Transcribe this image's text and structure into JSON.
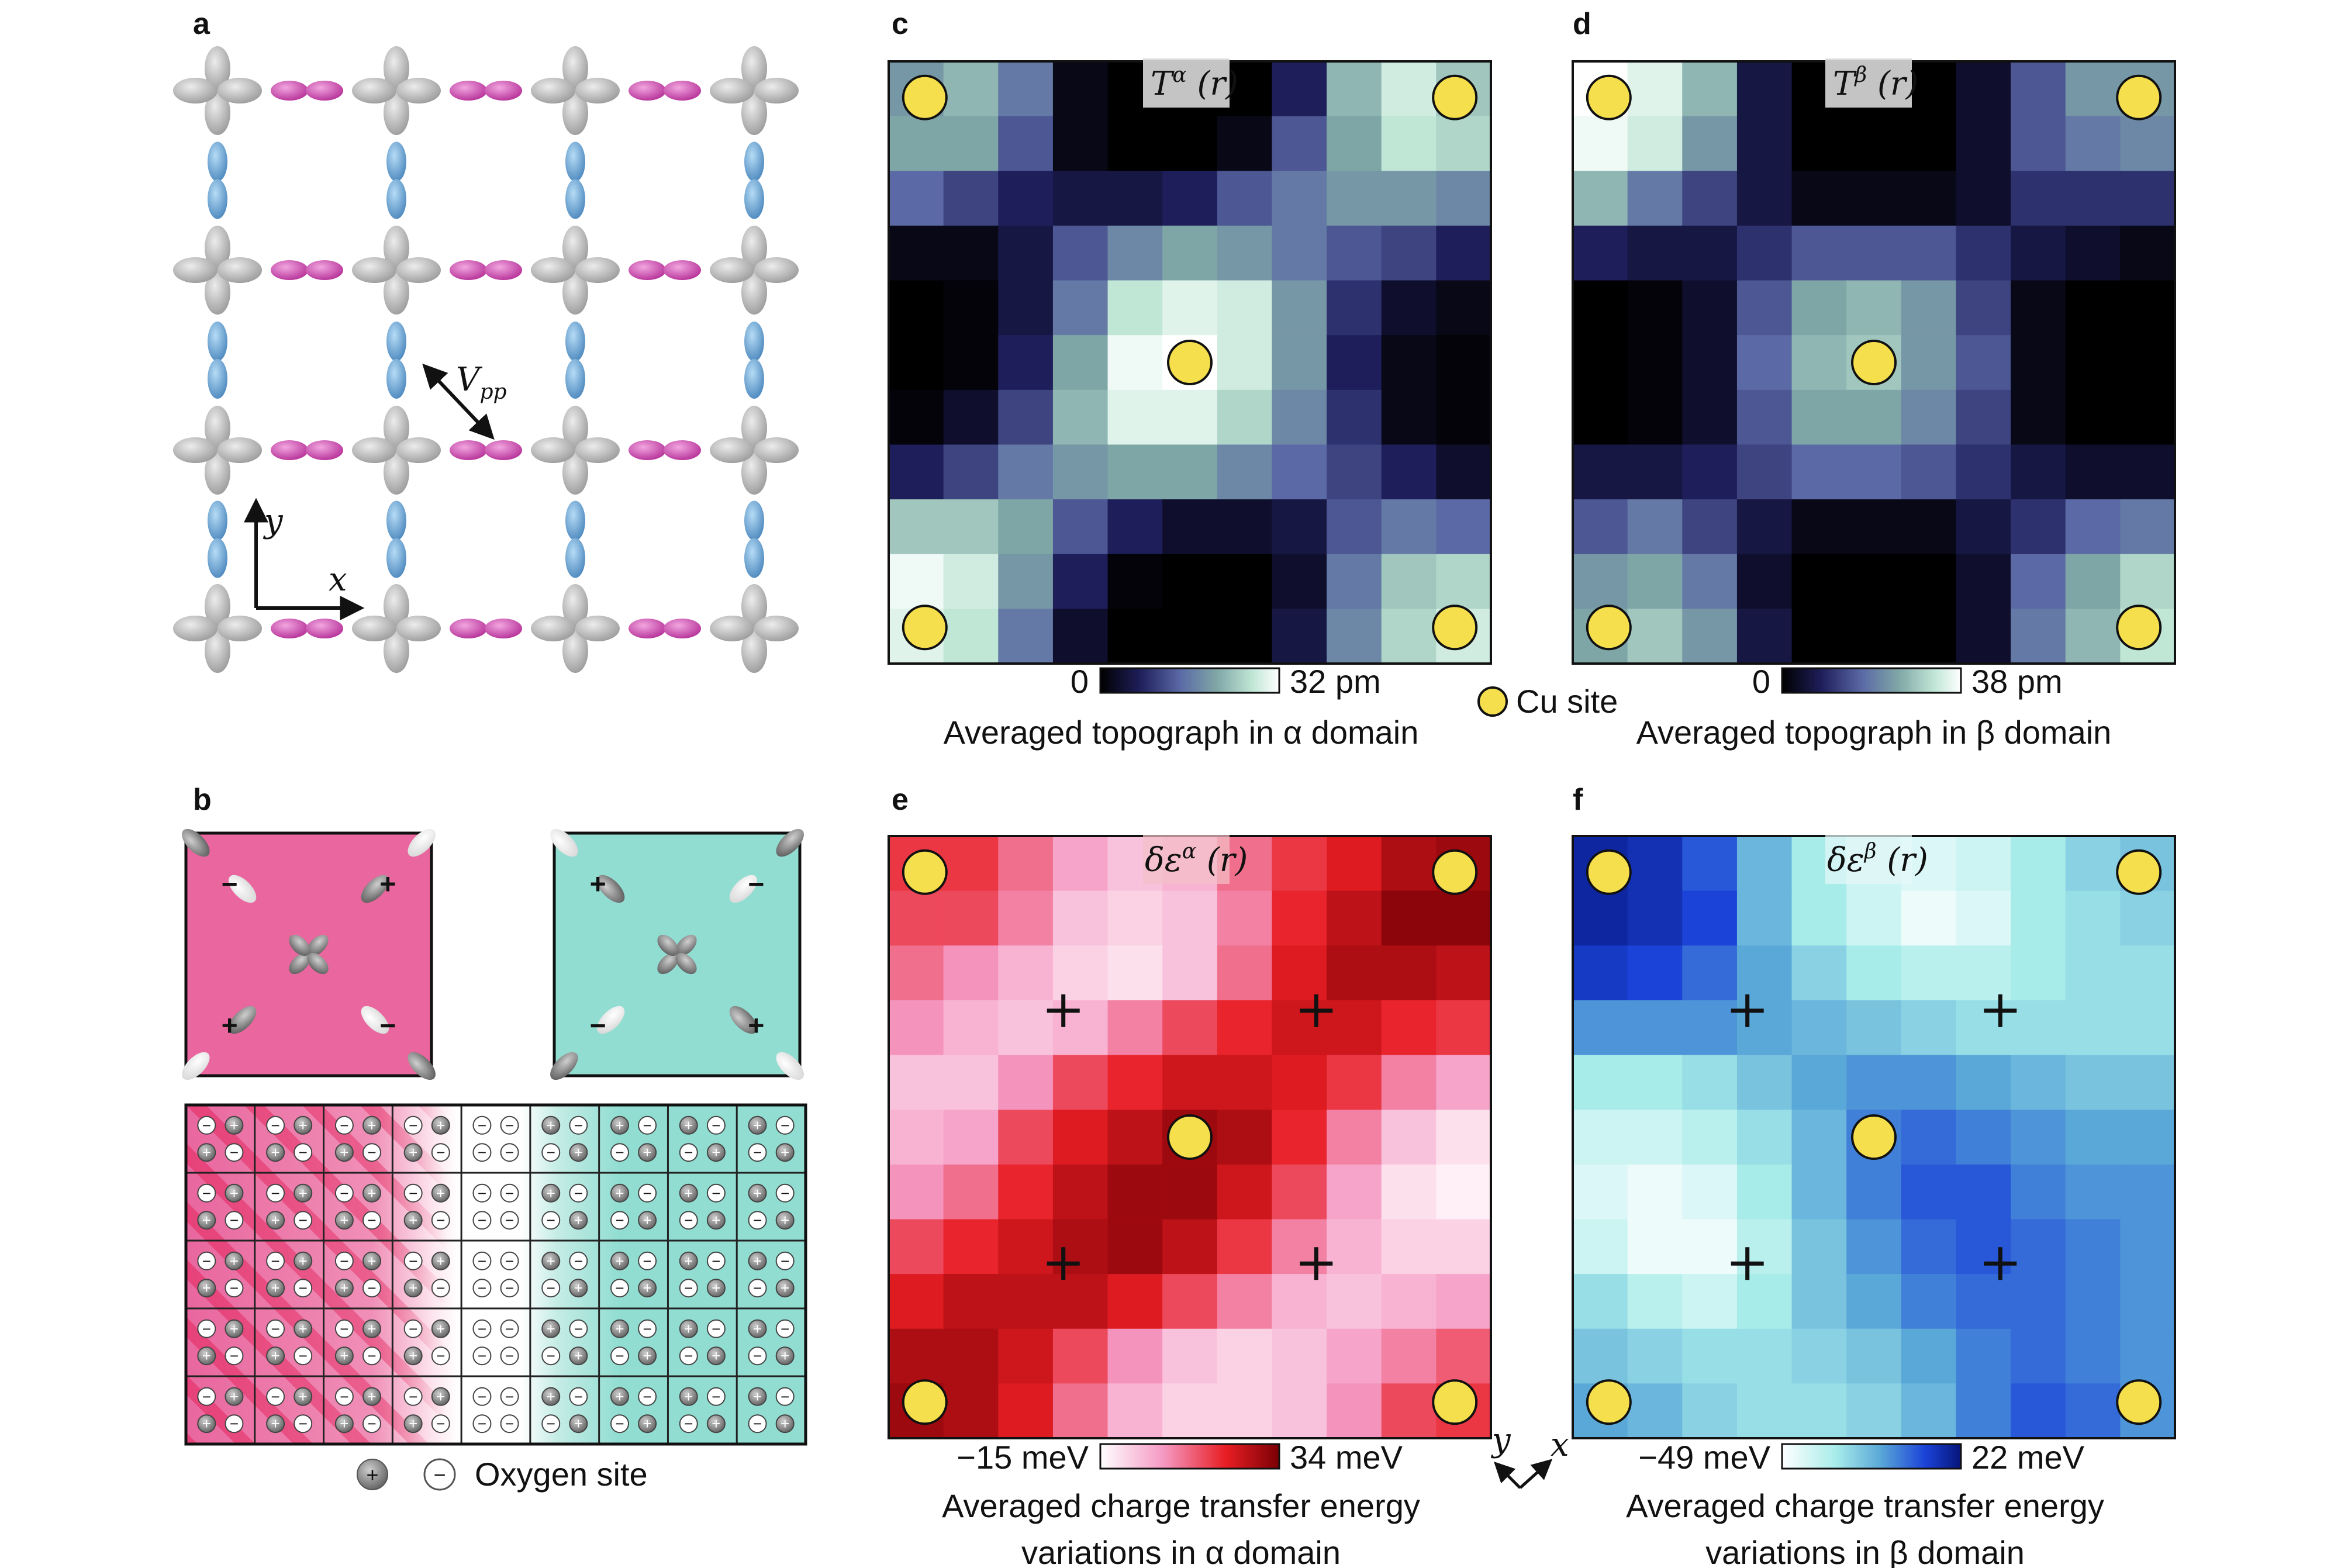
{
  "panels": {
    "a": {
      "label": "a",
      "vpp": "V",
      "vpp_sub": "pp",
      "axis_x": "x",
      "axis_y": "y"
    },
    "b": {
      "label": "b",
      "legend_text": "Oxygen site",
      "plus": "+",
      "minus": "−"
    },
    "c": {
      "label": "c",
      "title_base": "T",
      "title_sup": "α",
      "title_arg": " (r)",
      "cb_min": "0",
      "cb_max": "32 pm",
      "caption": "Averaged topograph in α domain"
    },
    "d": {
      "label": "d",
      "title_base": "T",
      "title_sup": "β",
      "title_arg": " (r)",
      "cb_min": "0",
      "cb_max": "38 pm",
      "caption": "Averaged topograph in β domain"
    },
    "e": {
      "label": "e",
      "title_base": "δε",
      "title_sup": "α",
      "title_arg": " (r)",
      "cb_min": "−15 meV",
      "cb_max": "34 meV",
      "caption_1": "Averaged charge transfer energy",
      "caption_2": "variations in α domain"
    },
    "f": {
      "label": "f",
      "title_base": "δε",
      "title_sup": "β",
      "title_arg": " (r)",
      "cb_min": "−49 meV",
      "cb_max": "22 meV",
      "caption_1": "Averaged charge transfer energy",
      "caption_2": "variations in β domain"
    }
  },
  "cu_site_label": "Cu site",
  "rot_axes": {
    "x": "x",
    "y": "y"
  },
  "colors": {
    "cu_site": "#f5df4d",
    "orbital_pink": "#c54aa8",
    "orbital_blue": "#5f97c8",
    "orbital_grey": "#b8b8b8",
    "domain_pink": "#e9669e",
    "domain_cyan": "#91ddd2"
  },
  "colormaps": {
    "topo": [
      "#000000",
      "#1e1e5a",
      "#5b6aa6",
      "#7fa6a6",
      "#c0e6d6",
      "#ffffff"
    ],
    "alpha_ct": [
      "#ffffff",
      "#f59ac4",
      "#e81e24",
      "#7b0005"
    ],
    "beta_ct": [
      "#ffffff",
      "#a8ecea",
      "#5aa8d8",
      "#1b43d8",
      "#06157a"
    ]
  },
  "maps": {
    "c": [
      [
        0.55,
        0.65,
        0.45,
        0.05,
        0.0,
        0.0,
        0.0,
        0.2,
        0.65,
        0.85,
        0.7
      ],
      [
        0.6,
        0.6,
        0.35,
        0.05,
        0.0,
        0.0,
        0.05,
        0.35,
        0.6,
        0.8,
        0.75
      ],
      [
        0.4,
        0.3,
        0.2,
        0.15,
        0.15,
        0.2,
        0.35,
        0.45,
        0.55,
        0.55,
        0.5
      ],
      [
        0.05,
        0.05,
        0.15,
        0.35,
        0.5,
        0.6,
        0.55,
        0.45,
        0.35,
        0.3,
        0.2
      ],
      [
        0.0,
        0.02,
        0.15,
        0.45,
        0.8,
        0.9,
        0.85,
        0.55,
        0.25,
        0.1,
        0.05
      ],
      [
        0.0,
        0.02,
        0.2,
        0.6,
        0.95,
        1.0,
        0.85,
        0.55,
        0.2,
        0.05,
        0.02
      ],
      [
        0.02,
        0.1,
        0.3,
        0.65,
        0.9,
        0.9,
        0.75,
        0.5,
        0.25,
        0.05,
        0.02
      ],
      [
        0.2,
        0.3,
        0.45,
        0.55,
        0.6,
        0.6,
        0.5,
        0.4,
        0.3,
        0.2,
        0.1
      ],
      [
        0.7,
        0.7,
        0.6,
        0.35,
        0.2,
        0.1,
        0.1,
        0.15,
        0.35,
        0.45,
        0.4
      ],
      [
        0.95,
        0.85,
        0.55,
        0.2,
        0.02,
        0.0,
        0.0,
        0.1,
        0.45,
        0.7,
        0.75
      ],
      [
        0.9,
        0.8,
        0.45,
        0.1,
        0.0,
        0.0,
        0.0,
        0.15,
        0.5,
        0.75,
        0.85
      ]
    ],
    "d": [
      [
        1.0,
        0.9,
        0.65,
        0.15,
        0.0,
        0.0,
        0.0,
        0.1,
        0.35,
        0.55,
        0.55
      ],
      [
        0.95,
        0.85,
        0.55,
        0.15,
        0.0,
        0.0,
        0.0,
        0.1,
        0.35,
        0.45,
        0.5
      ],
      [
        0.65,
        0.45,
        0.3,
        0.15,
        0.05,
        0.05,
        0.05,
        0.1,
        0.25,
        0.25,
        0.25
      ],
      [
        0.2,
        0.15,
        0.15,
        0.25,
        0.35,
        0.35,
        0.35,
        0.25,
        0.15,
        0.1,
        0.05
      ],
      [
        0.0,
        0.02,
        0.1,
        0.35,
        0.6,
        0.65,
        0.55,
        0.3,
        0.05,
        0.0,
        0.0
      ],
      [
        0.0,
        0.02,
        0.1,
        0.4,
        0.65,
        0.7,
        0.55,
        0.35,
        0.05,
        0.0,
        0.0
      ],
      [
        0.0,
        0.02,
        0.1,
        0.35,
        0.6,
        0.6,
        0.5,
        0.3,
        0.05,
        0.0,
        0.0
      ],
      [
        0.15,
        0.15,
        0.2,
        0.3,
        0.4,
        0.4,
        0.35,
        0.25,
        0.15,
        0.1,
        0.1
      ],
      [
        0.35,
        0.45,
        0.3,
        0.15,
        0.05,
        0.05,
        0.05,
        0.15,
        0.25,
        0.4,
        0.45
      ],
      [
        0.55,
        0.6,
        0.45,
        0.1,
        0.0,
        0.0,
        0.0,
        0.1,
        0.4,
        0.6,
        0.75
      ],
      [
        0.6,
        0.7,
        0.55,
        0.15,
        0.0,
        0.0,
        0.0,
        0.1,
        0.45,
        0.65,
        0.8
      ]
    ],
    "e": [
      [
        0.6,
        0.6,
        0.45,
        0.3,
        0.2,
        0.25,
        0.45,
        0.6,
        0.7,
        0.85,
        0.9
      ],
      [
        0.55,
        0.55,
        0.4,
        0.2,
        0.15,
        0.2,
        0.4,
        0.65,
        0.8,
        0.95,
        0.95
      ],
      [
        0.45,
        0.35,
        0.25,
        0.15,
        0.1,
        0.2,
        0.45,
        0.7,
        0.85,
        0.85,
        0.8
      ],
      [
        0.35,
        0.25,
        0.2,
        0.25,
        0.4,
        0.55,
        0.65,
        0.75,
        0.75,
        0.65,
        0.6
      ],
      [
        0.2,
        0.2,
        0.35,
        0.55,
        0.65,
        0.75,
        0.75,
        0.7,
        0.6,
        0.4,
        0.3
      ],
      [
        0.25,
        0.3,
        0.55,
        0.7,
        0.8,
        0.9,
        0.85,
        0.65,
        0.4,
        0.2,
        0.1
      ],
      [
        0.35,
        0.45,
        0.65,
        0.8,
        0.9,
        0.9,
        0.75,
        0.55,
        0.3,
        0.1,
        0.05
      ],
      [
        0.55,
        0.65,
        0.75,
        0.85,
        0.9,
        0.8,
        0.6,
        0.4,
        0.25,
        0.15,
        0.15
      ],
      [
        0.7,
        0.8,
        0.8,
        0.8,
        0.7,
        0.55,
        0.4,
        0.25,
        0.2,
        0.25,
        0.3
      ],
      [
        0.85,
        0.85,
        0.75,
        0.55,
        0.35,
        0.2,
        0.15,
        0.2,
        0.3,
        0.4,
        0.5
      ],
      [
        0.9,
        0.85,
        0.7,
        0.45,
        0.25,
        0.15,
        0.15,
        0.2,
        0.35,
        0.55,
        0.6
      ]
    ],
    "f": [
      [
        0.9,
        0.85,
        0.7,
        0.45,
        0.25,
        0.15,
        0.1,
        0.15,
        0.25,
        0.35,
        0.4
      ],
      [
        0.9,
        0.85,
        0.75,
        0.45,
        0.25,
        0.15,
        0.05,
        0.1,
        0.25,
        0.3,
        0.35
      ],
      [
        0.8,
        0.75,
        0.65,
        0.5,
        0.35,
        0.25,
        0.2,
        0.2,
        0.25,
        0.3,
        0.3
      ],
      [
        0.55,
        0.55,
        0.55,
        0.5,
        0.45,
        0.4,
        0.35,
        0.3,
        0.3,
        0.3,
        0.3
      ],
      [
        0.25,
        0.25,
        0.3,
        0.4,
        0.5,
        0.55,
        0.55,
        0.5,
        0.45,
        0.4,
        0.4
      ],
      [
        0.15,
        0.15,
        0.2,
        0.3,
        0.45,
        0.6,
        0.65,
        0.6,
        0.55,
        0.5,
        0.5
      ],
      [
        0.1,
        0.05,
        0.1,
        0.25,
        0.45,
        0.6,
        0.7,
        0.7,
        0.6,
        0.55,
        0.55
      ],
      [
        0.15,
        0.05,
        0.05,
        0.2,
        0.4,
        0.55,
        0.65,
        0.7,
        0.65,
        0.6,
        0.55
      ],
      [
        0.3,
        0.2,
        0.15,
        0.25,
        0.4,
        0.5,
        0.6,
        0.65,
        0.65,
        0.6,
        0.55
      ],
      [
        0.4,
        0.35,
        0.3,
        0.3,
        0.35,
        0.4,
        0.5,
        0.6,
        0.65,
        0.6,
        0.55
      ],
      [
        0.5,
        0.45,
        0.35,
        0.3,
        0.3,
        0.35,
        0.45,
        0.6,
        0.7,
        0.65,
        0.55
      ]
    ]
  },
  "lattice_signs": [
    [
      "-",
      "+",
      "+",
      "-"
    ],
    [
      "-",
      "+",
      "+",
      "-"
    ],
    [
      "-",
      "+",
      "+",
      "-"
    ],
    [
      "-",
      "+",
      "+",
      "-"
    ],
    [
      "-",
      "-",
      "-",
      "-"
    ],
    [
      "+",
      "-",
      "-",
      "+"
    ],
    [
      "+",
      "-",
      "-",
      "+"
    ],
    [
      "+",
      "-",
      "-",
      "+"
    ],
    [
      "+",
      "-",
      "-",
      "+"
    ]
  ]
}
